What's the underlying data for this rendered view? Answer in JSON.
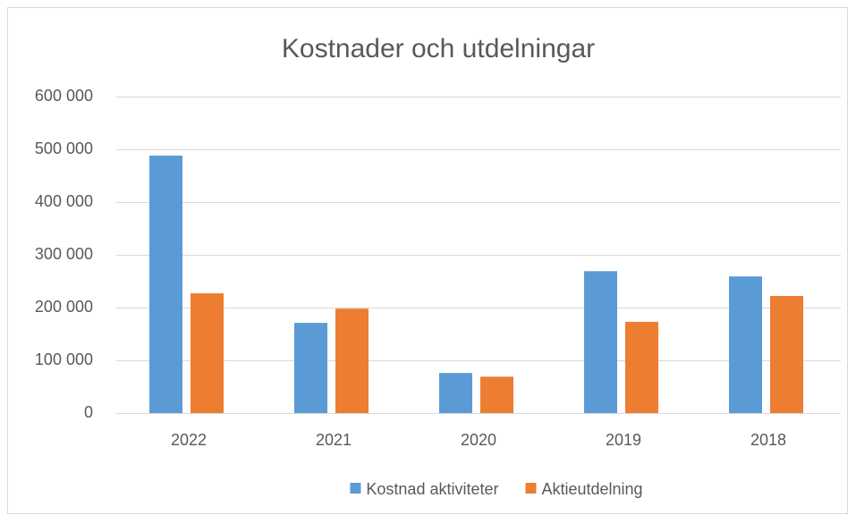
{
  "chart_data": {
    "type": "bar",
    "title": "Kostnader och utdelningar",
    "categories": [
      "2022",
      "2021",
      "2020",
      "2019",
      "2018"
    ],
    "series": [
      {
        "name": "Kostnad aktiviteter",
        "color": "#5b9bd5",
        "values": [
          488000,
          171000,
          76000,
          269000,
          259000
        ]
      },
      {
        "name": "Aktieutdelning",
        "color": "#ed7d31",
        "values": [
          227000,
          198000,
          69000,
          173000,
          222000
        ]
      }
    ],
    "ylim": [
      0,
      600000
    ],
    "yticks": [
      0,
      {
        "value": 100000,
        "label": "100 000"
      },
      {
        "value": 200000,
        "label": "200 000"
      },
      {
        "value": 300000,
        "label": "300 000"
      },
      {
        "value": 400000,
        "label": "400 000"
      },
      {
        "value": 500000,
        "label": "500 000"
      },
      {
        "value": 600000,
        "label": "600 000"
      }
    ],
    "grid": true,
    "legend": "bottom"
  }
}
